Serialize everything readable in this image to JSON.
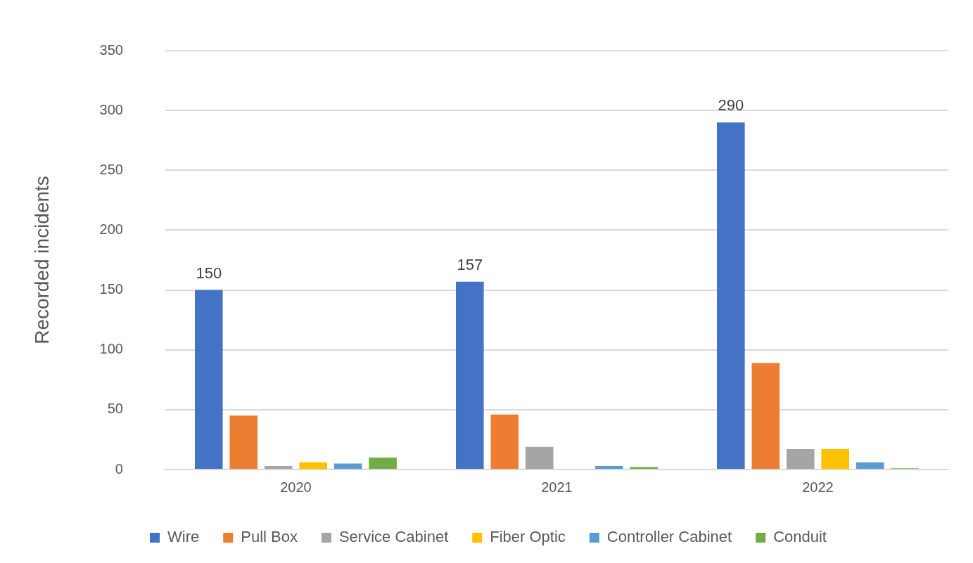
{
  "chart_data": {
    "type": "bar",
    "ylabel": "Recorded incidents",
    "categories": [
      "2020",
      "2021",
      "2022"
    ],
    "series": [
      {
        "name": "Wire",
        "color": "#4472c4",
        "values": [
          150,
          157,
          290
        ],
        "value_labels": [
          "150",
          "157",
          "290"
        ]
      },
      {
        "name": "Pull Box",
        "color": "#ed7d31",
        "values": [
          45,
          46,
          89
        ]
      },
      {
        "name": "Service Cabinet",
        "color": "#a5a5a5",
        "values": [
          3,
          19,
          17
        ]
      },
      {
        "name": "Fiber Optic",
        "color": "#ffc000",
        "values": [
          6,
          0,
          17
        ]
      },
      {
        "name": "Controller Cabinet",
        "color": "#5b9bd5",
        "values": [
          5,
          3,
          6
        ]
      },
      {
        "name": "Conduit",
        "color": "#70ad47",
        "values": [
          10,
          2,
          1
        ]
      }
    ],
    "ylim": [
      0,
      350
    ],
    "yticks": [
      0,
      50,
      100,
      150,
      200,
      250,
      300,
      350
    ],
    "grid": "y",
    "legend": "bottom"
  }
}
